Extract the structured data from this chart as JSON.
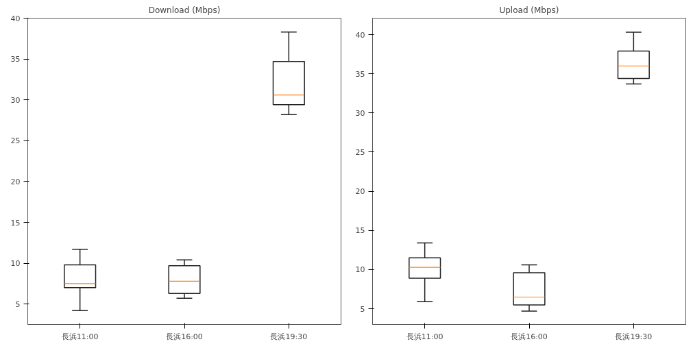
{
  "chart_data": [
    {
      "type": "box",
      "title": "Download (Mbps)",
      "categories": [
        "長浜11:00",
        "長浜16:00",
        "長浜19:30"
      ],
      "boxes": [
        {
          "low": 4.2,
          "q1": 7.0,
          "median": 7.5,
          "q3": 9.8,
          "high": 11.7
        },
        {
          "low": 5.7,
          "q1": 6.3,
          "median": 7.8,
          "q3": 9.7,
          "high": 10.4
        },
        {
          "low": 28.2,
          "q1": 29.4,
          "median": 30.6,
          "q3": 34.7,
          "high": 38.3
        }
      ],
      "ylim": [
        2.5,
        40
      ],
      "yticks": [
        5,
        10,
        15,
        20,
        25,
        30,
        35,
        40
      ],
      "grid": false
    },
    {
      "type": "box",
      "title": "Upload (Mbps)",
      "categories": [
        "長浜11:00",
        "長浜16:00",
        "長浜19:30"
      ],
      "boxes": [
        {
          "low": 5.9,
          "q1": 8.9,
          "median": 10.3,
          "q3": 11.5,
          "high": 13.4
        },
        {
          "low": 4.7,
          "q1": 5.5,
          "median": 6.5,
          "q3": 9.6,
          "high": 10.6
        },
        {
          "low": 33.7,
          "q1": 34.4,
          "median": 36.0,
          "q3": 37.9,
          "high": 40.3
        }
      ],
      "ylim": [
        3.0,
        42.1
      ],
      "yticks": [
        5,
        10,
        15,
        20,
        25,
        30,
        35,
        40
      ],
      "grid": false
    }
  ]
}
